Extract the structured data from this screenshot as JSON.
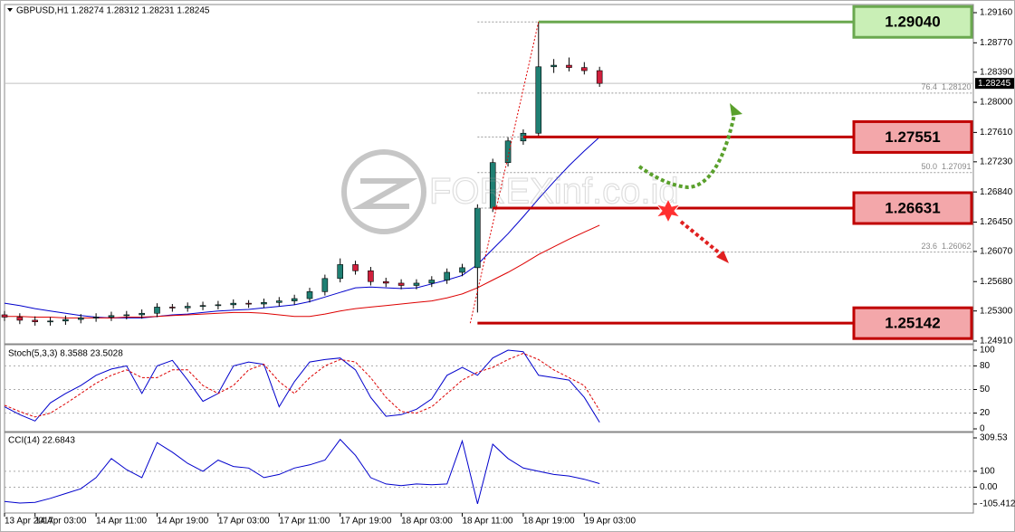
{
  "chart_data": [
    {
      "type": "candlestick",
      "title": "GBPUSD,H1  1.28274 1.28312 1.28231 1.28245",
      "watermark": "FOREXinf.co.id",
      "x": [
        0,
        2,
        4,
        6,
        8,
        10,
        12,
        14,
        16,
        18,
        20,
        22,
        24,
        26,
        28,
        30,
        32,
        34,
        36,
        38,
        40,
        42,
        44,
        46,
        48,
        50,
        52,
        54,
        56,
        58,
        60,
        62,
        64,
        66,
        68,
        70,
        72,
        74,
        76,
        78
      ],
      "open": [
        1.2525,
        1.2522,
        1.2518,
        1.2516,
        1.2517,
        1.2519,
        1.2521,
        1.2522,
        1.2524,
        1.2525,
        1.2527,
        1.2535,
        1.2534,
        1.2536,
        1.2537,
        1.2538,
        1.254,
        1.2539,
        1.2541,
        1.2543,
        1.2546,
        1.2555,
        1.2572,
        1.259,
        1.2582,
        1.2568,
        1.2566,
        1.2563,
        1.2566,
        1.257,
        1.258,
        1.2586,
        1.2663,
        1.2722,
        1.275,
        1.276,
        1.2846,
        1.2848,
        1.2845,
        1.2841
      ],
      "high": [
        1.253,
        1.2527,
        1.2523,
        1.2522,
        1.2524,
        1.2526,
        1.2527,
        1.2529,
        1.253,
        1.2532,
        1.254,
        1.2539,
        1.2541,
        1.2542,
        1.2543,
        1.2545,
        1.2544,
        1.2546,
        1.2548,
        1.2551,
        1.256,
        1.2577,
        1.2598,
        1.2595,
        1.2587,
        1.2573,
        1.2571,
        1.2571,
        1.2575,
        1.2585,
        1.2591,
        1.2668,
        1.2727,
        1.2755,
        1.2765,
        1.2904,
        1.2856,
        1.2858,
        1.2852,
        1.2846
      ],
      "low": [
        1.2517,
        1.2513,
        1.2511,
        1.2511,
        1.2512,
        1.2514,
        1.2516,
        1.2517,
        1.2519,
        1.252,
        1.2522,
        1.2529,
        1.2529,
        1.2531,
        1.2532,
        1.2533,
        1.2534,
        1.2534,
        1.2536,
        1.2538,
        1.2541,
        1.255,
        1.2567,
        1.2577,
        1.2563,
        1.2561,
        1.2558,
        1.2558,
        1.2561,
        1.2565,
        1.2575,
        1.2528,
        1.2658,
        1.2717,
        1.2745,
        1.2755,
        1.2838,
        1.284,
        1.2836,
        1.282
      ],
      "close": [
        1.2522,
        1.2518,
        1.2516,
        1.2517,
        1.2519,
        1.2521,
        1.2522,
        1.2524,
        1.2525,
        1.2527,
        1.2535,
        1.2534,
        1.2536,
        1.2537,
        1.2538,
        1.254,
        1.2539,
        1.2541,
        1.2543,
        1.2546,
        1.2555,
        1.2572,
        1.259,
        1.2582,
        1.2568,
        1.2566,
        1.2563,
        1.2566,
        1.257,
        1.258,
        1.2586,
        1.2663,
        1.2722,
        1.275,
        1.276,
        1.2846,
        1.2848,
        1.2845,
        1.2841,
        1.28245
      ],
      "up_color": "#1f7f73",
      "down_color": "#d01f3c",
      "series": [
        {
          "color": "#0000cc",
          "values": [
            1.254,
            1.2537,
            1.2533,
            1.253,
            1.2527,
            1.2524,
            1.2522,
            1.2521,
            1.2521,
            1.2521,
            1.2523,
            1.2525,
            1.2526,
            1.2528,
            1.253,
            1.2531,
            1.2532,
            1.2534,
            1.2536,
            1.2538,
            1.2542,
            1.2548,
            1.2554,
            1.256,
            1.2561,
            1.256,
            1.2559,
            1.256,
            1.2565,
            1.257,
            1.2576,
            1.259,
            1.261,
            1.263,
            1.2652,
            1.2675,
            1.2697,
            1.2718,
            1.2737,
            1.2755
          ]
        },
        {
          "color": "#dd0000",
          "values": [
            1.2523,
            1.2523,
            1.2522,
            1.2522,
            1.2521,
            1.2521,
            1.2521,
            1.2521,
            1.2522,
            1.2522,
            1.2523,
            1.2524,
            1.2525,
            1.2526,
            1.2527,
            1.2528,
            1.2528,
            1.2527,
            1.2525,
            1.2523,
            1.2523,
            1.2526,
            1.253,
            1.2533,
            1.2535,
            1.2537,
            1.2539,
            1.2541,
            1.2543,
            1.2547,
            1.2552,
            1.256,
            1.257,
            1.258,
            1.2591,
            1.2603,
            1.2613,
            1.2623,
            1.2632,
            1.2641
          ]
        }
      ],
      "xlim": [
        0,
        127
      ],
      "ylim": [
        1.2491,
        1.2916
      ],
      "yticks": [
        {
          "value": 1.2916,
          "label": "1.29160"
        },
        {
          "value": 1.2877,
          "label": "1.28770"
        },
        {
          "value": 1.2839,
          "label": "1.28390"
        },
        {
          "value": 1.28,
          "label": "1.28000"
        },
        {
          "value": 1.2761,
          "label": "1.27610"
        },
        {
          "value": 1.2723,
          "label": "1.27230"
        },
        {
          "value": 1.2684,
          "label": "1.26840"
        },
        {
          "value": 1.2645,
          "label": "1.26450"
        },
        {
          "value": 1.2607,
          "label": "1.26070"
        },
        {
          "value": 1.2568,
          "label": "1.25680"
        },
        {
          "value": 1.253,
          "label": "1.25300"
        },
        {
          "value": 1.2491,
          "label": "1.24910"
        }
      ],
      "current_price": 1.28245,
      "levels": [
        {
          "value": 1.2904,
          "label": "1.29040",
          "color": "#6aa84f",
          "fill": "#c9efb6"
        },
        {
          "value": 1.27551,
          "label": "1.27551",
          "color": "#c00000",
          "fill": "#f3a7aa"
        },
        {
          "value": 1.26631,
          "label": "1.26631",
          "color": "#c00000",
          "fill": "#f3a7aa"
        },
        {
          "value": 1.25142,
          "label": "1.25142",
          "color": "#c00000",
          "fill": "#f3a7aa"
        }
      ],
      "fib": [
        {
          "level": "76.4",
          "price": {
            "value": 1.2812,
            "label": "1.28120"
          }
        },
        {
          "level": "50.0",
          "price": {
            "value": 1.27091,
            "label": "1.27091"
          }
        },
        {
          "level": "23.6",
          "price": {
            "value": 1.26062,
            "label": "1.26062"
          }
        }
      ]
    },
    {
      "type": "line",
      "title": "Stoch(5,3,3) 8.3588 23.5028",
      "x": [
        0,
        2,
        4,
        6,
        8,
        10,
        12,
        14,
        16,
        18,
        20,
        22,
        24,
        26,
        28,
        30,
        32,
        34,
        36,
        38,
        40,
        42,
        44,
        46,
        48,
        50,
        52,
        54,
        56,
        58,
        60,
        62,
        64,
        66,
        68,
        70,
        72,
        74,
        76,
        78
      ],
      "series": [
        {
          "color": "#0000cc",
          "values": [
            28,
            18,
            10,
            33,
            45,
            55,
            68,
            76,
            80,
            45,
            80,
            87,
            62,
            35,
            45,
            80,
            85,
            82,
            28,
            60,
            85,
            88,
            90,
            75,
            40,
            16,
            18,
            25,
            38,
            68,
            78,
            68,
            90,
            100,
            98,
            68,
            65,
            62,
            40,
            8.3588
          ]
        },
        {
          "color": "#dd0000",
          "dashed": true,
          "values": [
            30,
            22,
            15,
            20,
            32,
            45,
            58,
            68,
            75,
            65,
            65,
            75,
            75,
            55,
            45,
            55,
            75,
            82,
            60,
            45,
            65,
            80,
            88,
            85,
            65,
            40,
            22,
            20,
            28,
            45,
            62,
            72,
            78,
            88,
            96,
            88,
            75,
            65,
            55,
            23.5028
          ]
        }
      ],
      "xlim": [
        0,
        127
      ],
      "ylim": [
        0,
        100
      ],
      "yticks": [
        100,
        80,
        50,
        20,
        0
      ],
      "grid_levels": [
        80,
        50,
        20
      ]
    },
    {
      "type": "line",
      "title": "CCI(14) 22.6843",
      "x": [
        0,
        2,
        4,
        6,
        8,
        10,
        12,
        14,
        16,
        18,
        20,
        22,
        24,
        26,
        28,
        30,
        32,
        34,
        36,
        38,
        40,
        42,
        44,
        46,
        48,
        50,
        52,
        54,
        56,
        58,
        60,
        62,
        64,
        66,
        68,
        70,
        72,
        74,
        76,
        78
      ],
      "series": [
        {
          "color": "#0000cc",
          "values": [
            -90,
            -100,
            -95,
            -70,
            -40,
            -10,
            60,
            180,
            110,
            60,
            280,
            220,
            150,
            100,
            170,
            130,
            120,
            60,
            80,
            120,
            140,
            170,
            300,
            200,
            60,
            20,
            10,
            20,
            15,
            20,
            290,
            -105,
            270,
            180,
            120,
            100,
            80,
            70,
            50,
            22.6843
          ]
        }
      ],
      "xlim": [
        0,
        127
      ],
      "ylim": [
        -105.4125,
        309.53
      ],
      "yticks": [
        309.53,
        100,
        {
          "value": 0,
          "label": "0.00"
        },
        -105.4125
      ],
      "grid_levels": [
        100,
        0
      ],
      "xticks": [
        {
          "value": 0,
          "label": "13 Apr 2017"
        },
        {
          "value": 4,
          "label": "14 Apr 03:00"
        },
        {
          "value": 12,
          "label": "14 Apr 11:00"
        },
        {
          "value": 20,
          "label": "14 Apr 19:00"
        },
        {
          "value": 28,
          "label": "17 Apr 03:00"
        },
        {
          "value": 36,
          "label": "17 Apr 11:00"
        },
        {
          "value": 44,
          "label": "17 Apr 19:00"
        },
        {
          "value": 52,
          "label": "18 Apr 03:00"
        },
        {
          "value": 60,
          "label": "18 Apr 11:00"
        },
        {
          "value": 68,
          "label": "18 Apr 19:00"
        },
        {
          "value": 76,
          "label": "19 Apr 03:00"
        }
      ]
    }
  ]
}
